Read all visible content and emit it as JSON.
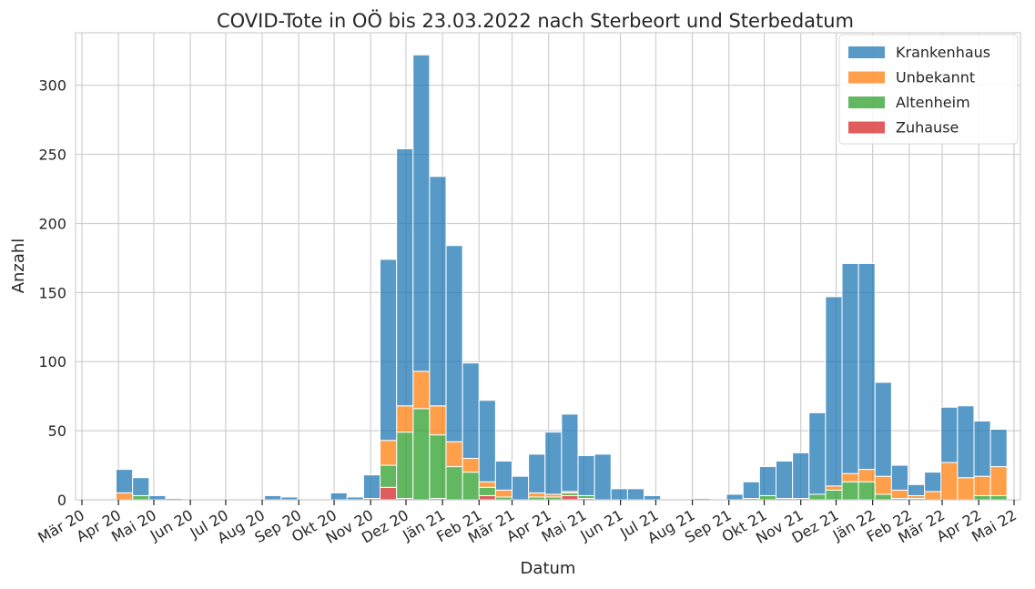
{
  "chart_data": {
    "type": "bar",
    "stacked": true,
    "title": "COVID-Tote in OÖ bis 23.03.2022 nach Sterbeort und Sterbedatum",
    "xlabel": "Datum",
    "ylabel": "Anzahl",
    "ylim": [
      0,
      338
    ],
    "yticks": [
      0,
      50,
      100,
      150,
      200,
      250,
      300
    ],
    "grid": true,
    "legend_position": "top-right",
    "x_axis": {
      "start": "2020-03-01",
      "end": "2022-05-01",
      "tick_labels": [
        "Mär 20",
        "Apr 20",
        "Mai 20",
        "Jun 20",
        "Jul 20",
        "Aug 20",
        "Sep 20",
        "Okt 20",
        "Nov 20",
        "Dez 20",
        "Jän 21",
        "Feb 21",
        "Mär 21",
        "Apr 21",
        "Mai 21",
        "Jun 21",
        "Jul 21",
        "Aug 21",
        "Sep 21",
        "Okt 21",
        "Nov 21",
        "Dez 21",
        "Jän 22",
        "Feb 22",
        "Mär 22",
        "Apr 22",
        "Mai 22"
      ]
    },
    "bin_starts": [
      "2020-03-30",
      "2020-04-13",
      "2020-04-27",
      "2020-05-11",
      "2020-05-25",
      "2020-06-08",
      "2020-06-22",
      "2020-07-06",
      "2020-07-20",
      "2020-08-03",
      "2020-08-17",
      "2020-08-31",
      "2020-09-14",
      "2020-09-28",
      "2020-10-12",
      "2020-10-26",
      "2020-11-09",
      "2020-11-23",
      "2020-12-07",
      "2020-12-21",
      "2021-01-04",
      "2021-01-18",
      "2021-02-01",
      "2021-02-15",
      "2021-03-01",
      "2021-03-15",
      "2021-03-29",
      "2021-04-12",
      "2021-04-26",
      "2021-05-10",
      "2021-05-24",
      "2021-06-07",
      "2021-06-21",
      "2021-07-05",
      "2021-07-19",
      "2021-08-02",
      "2021-08-16",
      "2021-08-30",
      "2021-09-13",
      "2021-09-27",
      "2021-10-11",
      "2021-10-25",
      "2021-11-08",
      "2021-11-22",
      "2021-12-06",
      "2021-12-20",
      "2022-01-03",
      "2022-01-17",
      "2022-01-31",
      "2022-02-14",
      "2022-02-28",
      "2022-03-14",
      "2022-03-28",
      "2022-04-11"
    ],
    "series": [
      {
        "name": "Zuhause",
        "color": "#d62728",
        "values": [
          0,
          0,
          0,
          0,
          0,
          0,
          0,
          0,
          0,
          0,
          0,
          0,
          0,
          0,
          0,
          1,
          9,
          1,
          0,
          1,
          0,
          0,
          3,
          0,
          0,
          0,
          0,
          3,
          1,
          0,
          0,
          0,
          0,
          0,
          0,
          0,
          0,
          0,
          0,
          0,
          0,
          0,
          0,
          0,
          0,
          0,
          0,
          0,
          0,
          0,
          0,
          0,
          0,
          0
        ]
      },
      {
        "name": "Altenheim",
        "color": "#2ca02c",
        "values": [
          0,
          3,
          0,
          0,
          0,
          0,
          0,
          0,
          0,
          0,
          0,
          0,
          0,
          0,
          0,
          0,
          16,
          48,
          66,
          46,
          24,
          20,
          6,
          2,
          0,
          2,
          2,
          2,
          2,
          0,
          0,
          0,
          0,
          0,
          0,
          0,
          0,
          0,
          1,
          3,
          1,
          1,
          4,
          7,
          13,
          13,
          4,
          1,
          1,
          0,
          0,
          0,
          3,
          3
        ]
      },
      {
        "name": "Unbekannt",
        "color": "#ff7f0e",
        "values": [
          5,
          0,
          0,
          0,
          0,
          0,
          0,
          0,
          0,
          0,
          0,
          0,
          0,
          0,
          0,
          0,
          18,
          19,
          27,
          21,
          18,
          10,
          4,
          5,
          0,
          3,
          2,
          1,
          0,
          0,
          0,
          0,
          0,
          0,
          0,
          0,
          0,
          0,
          0,
          0,
          0,
          0,
          0,
          3,
          6,
          9,
          13,
          6,
          2,
          6,
          27,
          16,
          14,
          21
        ]
      },
      {
        "name": "Krankenhaus",
        "color": "#1f77b4",
        "values": [
          17,
          13,
          3,
          1,
          0,
          0,
          0,
          0,
          0,
          3,
          2,
          0,
          0,
          5,
          2,
          17,
          131,
          186,
          229,
          166,
          142,
          69,
          59,
          21,
          17,
          28,
          45,
          56,
          29,
          33,
          8,
          8,
          3,
          0,
          0,
          1,
          0,
          4,
          12,
          21,
          27,
          33,
          59,
          137,
          152,
          149,
          68,
          18,
          8,
          14,
          40,
          52,
          40,
          27
        ]
      }
    ],
    "legend_order": [
      "Krankenhaus",
      "Unbekannt",
      "Altenheim",
      "Zuhause"
    ]
  }
}
